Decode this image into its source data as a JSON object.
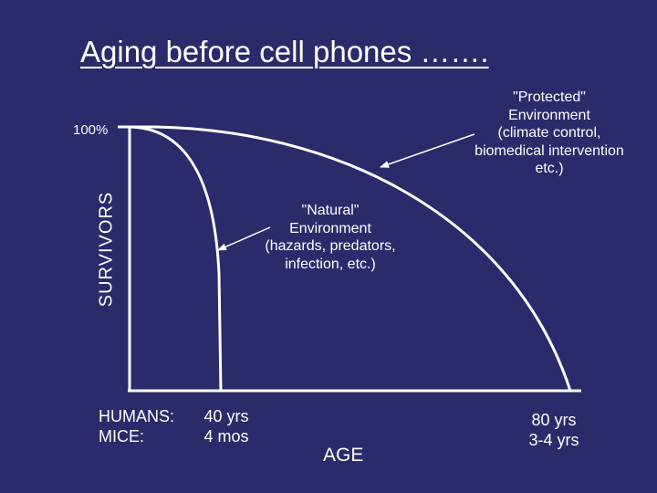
{
  "title": "Aging before cell phones …….",
  "y_axis": {
    "label": "SURVIVORS",
    "top_tick": "100%"
  },
  "x_axis": {
    "label": "AGE"
  },
  "curves": [
    {
      "id": "natural",
      "color": "#ffffff"
    },
    {
      "id": "protected",
      "color": "#ffffff"
    }
  ],
  "annotations": {
    "protected": {
      "lines": [
        "\"Protected\"",
        "Environment",
        "(climate control,",
        "biomedical intervention",
        "etc.)"
      ]
    },
    "natural": {
      "lines": [
        "\"Natural\"",
        "Environment",
        "(hazards, predators,",
        "infection, etc.)"
      ]
    }
  },
  "lifespans": {
    "natural": {
      "humans_label": "HUMANS:",
      "humans_value": "40 yrs",
      "mice_label": "MICE:",
      "mice_value": "4 mos"
    },
    "protected": {
      "humans_value": "80 yrs",
      "mice_value": "3-4 yrs"
    }
  },
  "colors": {
    "background": "#2b2b6b",
    "foreground": "#ffffff"
  }
}
